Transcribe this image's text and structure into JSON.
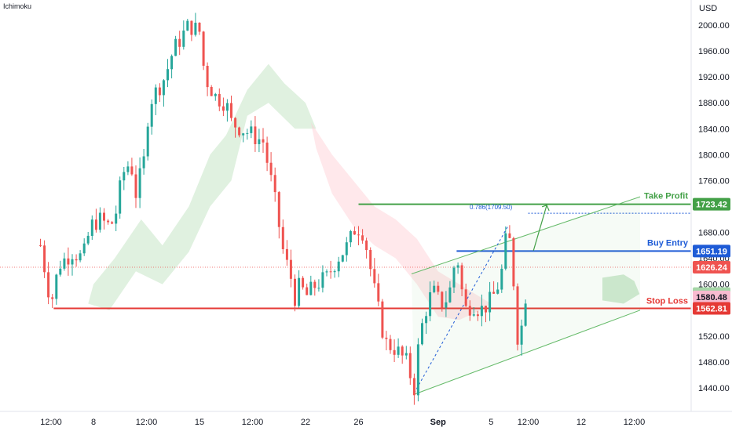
{
  "indicator_label": "Ichimoku",
  "currency_label": "USD",
  "colors": {
    "up": "#26a69a",
    "down": "#ef5350",
    "cloud_green": "#a5d6a7",
    "cloud_red": "#ffcdd2",
    "take_profit": "#43a047",
    "buy_entry": "#1e5bd6",
    "stop_loss": "#e53935",
    "channel": "#66bb6a",
    "fib": "#1e5bd6",
    "current": "#ef5350"
  },
  "chart_data": {
    "type": "candlestick",
    "title": "",
    "ylabel": "USD",
    "ylim": [
      1410,
      2020
    ],
    "y_ticks": [
      1440,
      1480,
      1520,
      1560,
      1600,
      1640,
      1680,
      1720,
      1760,
      1800,
      1840,
      1880,
      1920,
      1960,
      2000
    ],
    "x_ticks": [
      {
        "label": "12:00",
        "x": 0.2
      },
      {
        "label": "8",
        "x": 1.0
      },
      {
        "label": "12:00",
        "x": 2.0
      },
      {
        "label": "15",
        "x": 3.0
      },
      {
        "label": "12:00",
        "x": 4.0
      },
      {
        "label": "22",
        "x": 5.0
      },
      {
        "label": "26",
        "x": 6.0
      },
      {
        "label": "Sep",
        "x": 7.5
      },
      {
        "label": "5",
        "x": 8.5
      },
      {
        "label": "12:00",
        "x": 9.2
      },
      {
        "label": "12",
        "x": 10.2
      },
      {
        "label": "12:00",
        "x": 11.2
      }
    ],
    "price_path": [
      [
        0.0,
        1660
      ],
      [
        0.2,
        1570
      ],
      [
        0.35,
        1630
      ],
      [
        0.6,
        1650
      ],
      [
        0.8,
        1640
      ],
      [
        0.95,
        1690
      ],
      [
        1.1,
        1700
      ],
      [
        1.3,
        1690
      ],
      [
        1.4,
        1700
      ],
      [
        1.55,
        1770
      ],
      [
        1.7,
        1790
      ],
      [
        1.8,
        1740
      ],
      [
        1.95,
        1790
      ],
      [
        2.05,
        1880
      ],
      [
        2.2,
        1900
      ],
      [
        2.35,
        1920
      ],
      [
        2.5,
        1960
      ],
      [
        2.65,
        1980
      ],
      [
        2.8,
        2000
      ],
      [
        3.0,
        1990
      ],
      [
        3.1,
        1920
      ],
      [
        3.3,
        1890
      ],
      [
        3.5,
        1880
      ],
      [
        3.6,
        1850
      ],
      [
        3.8,
        1840
      ],
      [
        4.0,
        1830
      ],
      [
        4.2,
        1820
      ],
      [
        4.4,
        1740
      ],
      [
        4.6,
        1640
      ],
      [
        4.7,
        1620
      ],
      [
        4.8,
        1580
      ],
      [
        4.9,
        1600
      ],
      [
        5.0,
        1580
      ],
      [
        5.2,
        1600
      ],
      [
        5.4,
        1610
      ],
      [
        5.6,
        1640
      ],
      [
        5.8,
        1660
      ],
      [
        5.95,
        1690
      ],
      [
        6.1,
        1680
      ],
      [
        6.3,
        1590
      ],
      [
        6.5,
        1510
      ],
      [
        6.7,
        1500
      ],
      [
        6.9,
        1480
      ],
      [
        7.05,
        1440
      ],
      [
        7.15,
        1520
      ],
      [
        7.3,
        1570
      ],
      [
        7.4,
        1590
      ],
      [
        7.55,
        1570
      ],
      [
        7.7,
        1580
      ],
      [
        7.85,
        1650
      ],
      [
        8.0,
        1560
      ],
      [
        8.15,
        1570
      ],
      [
        8.3,
        1560
      ],
      [
        8.45,
        1570
      ],
      [
        8.6,
        1590
      ],
      [
        8.7,
        1620
      ],
      [
        8.8,
        1680
      ],
      [
        8.87,
        1660
      ],
      [
        8.92,
        1610
      ],
      [
        9.0,
        1520
      ],
      [
        9.1,
        1540
      ],
      [
        9.2,
        1625
      ]
    ],
    "annotations": {
      "take_profit": {
        "label": "Take Profit",
        "price": 1723.42,
        "tag": "1723.42"
      },
      "buy_entry": {
        "label": "Buy Entry",
        "price": 1651.19,
        "tag": "1651.19"
      },
      "stop_loss": {
        "label": "Stop Loss",
        "price": 1562.81,
        "tag": "1562.81"
      },
      "fib_label": "0.786(1709.50)",
      "fib_price": 1709.5,
      "current_price": {
        "price": 1626.24,
        "tag": "1626.24"
      },
      "cloud_top": {
        "price": 1585.62,
        "tag": "1585.62"
      },
      "cloud_bottom": {
        "price": 1580.48,
        "tag": "1580.48"
      }
    }
  }
}
